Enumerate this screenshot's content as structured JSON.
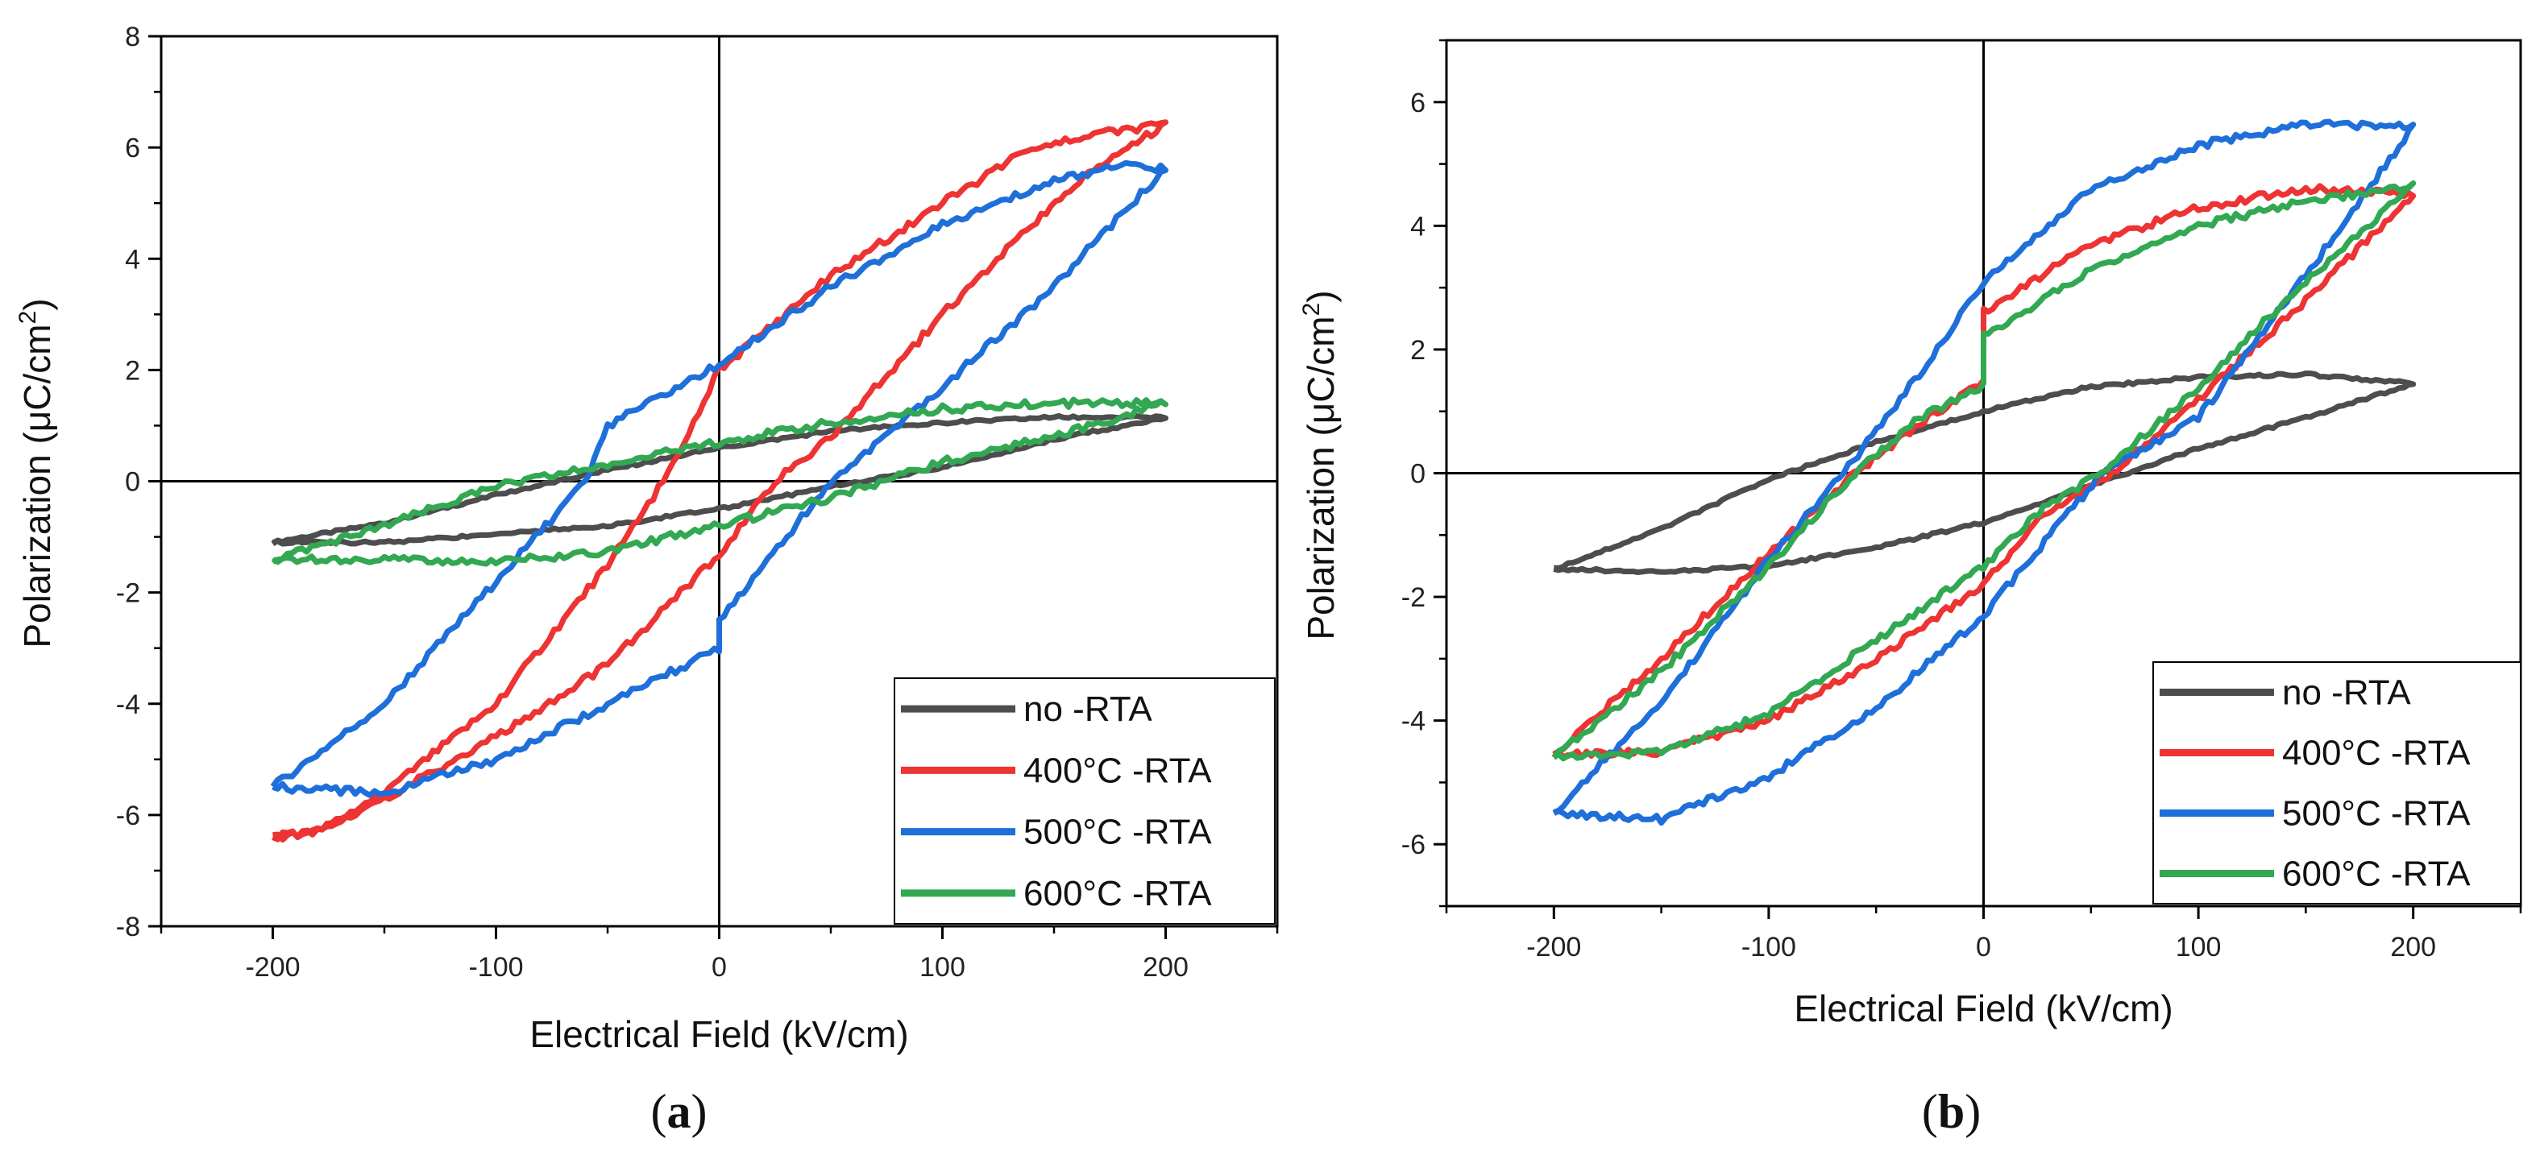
{
  "chart_data": [
    {
      "type": "line",
      "panel_label": "(a)",
      "panel_letter": "a",
      "title": "",
      "xlabel": "Electrical Field (kV/cm)",
      "ylabel_main": "Polarization (",
      "ylabel_unit": "μC/cm",
      "ylabel_sup": "2",
      "ylabel_close": ")",
      "xlim": [
        -250,
        250
      ],
      "ylim": [
        -8,
        8
      ],
      "xticks": [
        -200,
        -100,
        0,
        100,
        200
      ],
      "yticks": [
        -8,
        -6,
        -4,
        -2,
        0,
        2,
        4,
        6,
        8
      ],
      "legend_position": "bottom-right",
      "series": [
        {
          "name": "no -RTA",
          "color": "#4d4d4d",
          "upper": [
            [
              -200,
              -1.1
            ],
            [
              -150,
              -0.75
            ],
            [
              -100,
              -0.25
            ],
            [
              -50,
              0.2
            ],
            [
              0,
              0.6
            ],
            [
              50,
              0.9
            ],
            [
              100,
              1.05
            ],
            [
              150,
              1.15
            ],
            [
              200,
              1.15
            ]
          ],
          "lower": [
            [
              200,
              1.1
            ],
            [
              150,
              0.75
            ],
            [
              100,
              0.25
            ],
            [
              50,
              -0.1
            ],
            [
              0,
              -0.5
            ],
            [
              -50,
              -0.8
            ],
            [
              -100,
              -0.95
            ],
            [
              -150,
              -1.1
            ],
            [
              -200,
              -1.1
            ]
          ]
        },
        {
          "name": "400°C -RTA",
          "color": "#ee3333",
          "upper": [
            [
              -200,
              -6.4
            ],
            [
              -180,
              -6.3
            ],
            [
              -150,
              -5.6
            ],
            [
              -100,
              -4.0
            ],
            [
              -50,
              -1.5
            ],
            [
              -25,
              0.0
            ],
            [
              0,
              2.0
            ],
            [
              50,
              3.7
            ],
            [
              100,
              5.0
            ],
            [
              140,
              6.0
            ],
            [
              170,
              6.25
            ],
            [
              200,
              6.4
            ]
          ],
          "lower": [
            [
              200,
              6.4
            ],
            [
              170,
              5.7
            ],
            [
              140,
              4.6
            ],
            [
              100,
              3.0
            ],
            [
              50,
              0.8
            ],
            [
              25,
              0.0
            ],
            [
              0,
              -1.3
            ],
            [
              -50,
              -3.3
            ],
            [
              -100,
              -4.6
            ],
            [
              -150,
              -5.7
            ],
            [
              -180,
              -6.3
            ],
            [
              -200,
              -6.4
            ]
          ]
        },
        {
          "name": "500°C -RTA",
          "color": "#1e6fd9",
          "upper": [
            [
              -200,
              -5.5
            ],
            [
              -150,
              -4.0
            ],
            [
              -100,
              -1.8
            ],
            [
              -60,
              0.0
            ],
            [
              -50,
              1.0
            ],
            [
              0,
              2.1
            ],
            [
              50,
              3.5
            ],
            [
              100,
              4.6
            ],
            [
              150,
              5.4
            ],
            [
              180,
              5.7
            ],
            [
              200,
              5.6
            ]
          ],
          "lower": [
            [
              200,
              5.6
            ],
            [
              180,
              4.8
            ],
            [
              150,
              3.5
            ],
            [
              100,
              1.7
            ],
            [
              50,
              0.0
            ],
            [
              0,
              -2.5
            ],
            [
              0,
              -3.0
            ],
            [
              -50,
              -4.0
            ],
            [
              -100,
              -5.0
            ],
            [
              -150,
              -5.6
            ],
            [
              -200,
              -5.5
            ]
          ]
        },
        {
          "name": "600°C -RTA",
          "color": "#33a852",
          "upper": [
            [
              -200,
              -1.4
            ],
            [
              -150,
              -0.8
            ],
            [
              -100,
              -0.1
            ],
            [
              -50,
              0.3
            ],
            [
              0,
              0.7
            ],
            [
              50,
              1.05
            ],
            [
              100,
              1.3
            ],
            [
              150,
              1.4
            ],
            [
              200,
              1.4
            ]
          ],
          "lower": [
            [
              200,
              1.4
            ],
            [
              150,
              0.8
            ],
            [
              100,
              0.35
            ],
            [
              50,
              -0.3
            ],
            [
              0,
              -0.8
            ],
            [
              -50,
              -1.25
            ],
            [
              -100,
              -1.45
            ],
            [
              -150,
              -1.4
            ],
            [
              -200,
              -1.4
            ]
          ]
        }
      ]
    },
    {
      "type": "line",
      "panel_label": "(b)",
      "panel_letter": "b",
      "title": "",
      "xlabel": "Electrical Field (kV/cm)",
      "ylabel_main": "Polarization (",
      "ylabel_unit": "μC/cm",
      "ylabel_sup": "2",
      "ylabel_close": ")",
      "xlim": [
        -250,
        250
      ],
      "ylim": [
        -7,
        7
      ],
      "xticks": [
        -200,
        -100,
        0,
        100,
        200
      ],
      "yticks": [
        -6,
        -4,
        -2,
        0,
        2,
        4,
        6
      ],
      "legend_position": "bottom-right",
      "series": [
        {
          "name": "no -RTA",
          "color": "#4d4d4d",
          "upper": [
            [
              -200,
              -1.55
            ],
            [
              -150,
              -0.9
            ],
            [
              -100,
              -0.1
            ],
            [
              -50,
              0.5
            ],
            [
              0,
              1.0
            ],
            [
              50,
              1.4
            ],
            [
              100,
              1.55
            ],
            [
              150,
              1.6
            ],
            [
              200,
              1.45
            ]
          ],
          "lower": [
            [
              200,
              1.45
            ],
            [
              150,
              0.9
            ],
            [
              100,
              0.4
            ],
            [
              50,
              -0.2
            ],
            [
              0,
              -0.8
            ],
            [
              -50,
              -1.2
            ],
            [
              -100,
              -1.5
            ],
            [
              -150,
              -1.6
            ],
            [
              -200,
              -1.55
            ]
          ]
        },
        {
          "name": "400°C -RTA",
          "color": "#ee3333",
          "upper": [
            [
              -200,
              -4.55
            ],
            [
              -150,
              -3.0
            ],
            [
              -100,
              -1.3
            ],
            [
              -60,
              0.0
            ],
            [
              -30,
              0.8
            ],
            [
              0,
              1.5
            ],
            [
              0,
              2.6
            ],
            [
              50,
              3.7
            ],
            [
              100,
              4.3
            ],
            [
              150,
              4.6
            ],
            [
              200,
              4.5
            ]
          ],
          "lower": [
            [
              200,
              4.5
            ],
            [
              150,
              2.8
            ],
            [
              100,
              1.2
            ],
            [
              60,
              0.0
            ],
            [
              30,
              -0.6
            ],
            [
              0,
              -1.8
            ],
            [
              -50,
              -3.0
            ],
            [
              -100,
              -4.0
            ],
            [
              -150,
              -4.5
            ],
            [
              -200,
              -4.55
            ]
          ]
        },
        {
          "name": "500°C -RTA",
          "color": "#1e6fd9",
          "upper": [
            [
              -200,
              -5.5
            ],
            [
              -150,
              -3.7
            ],
            [
              -100,
              -1.4
            ],
            [
              -65,
              0.0
            ],
            [
              -30,
              1.6
            ],
            [
              0,
              3.1
            ],
            [
              50,
              4.6
            ],
            [
              100,
              5.3
            ],
            [
              150,
              5.65
            ],
            [
              200,
              5.6
            ]
          ],
          "lower": [
            [
              200,
              5.6
            ],
            [
              150,
              3.2
            ],
            [
              100,
              0.9
            ],
            [
              55,
              0.0
            ],
            [
              0,
              -2.3
            ],
            [
              -50,
              -3.8
            ],
            [
              -100,
              -4.9
            ],
            [
              -150,
              -5.6
            ],
            [
              -200,
              -5.5
            ]
          ]
        },
        {
          "name": "600°C -RTA",
          "color": "#33a852",
          "upper": [
            [
              -200,
              -4.6
            ],
            [
              -150,
              -3.2
            ],
            [
              -100,
              -1.5
            ],
            [
              -60,
              0.0
            ],
            [
              -30,
              0.9
            ],
            [
              0,
              1.4
            ],
            [
              0,
              2.2
            ],
            [
              50,
              3.3
            ],
            [
              100,
              4.0
            ],
            [
              150,
              4.4
            ],
            [
              200,
              4.65
            ]
          ],
          "lower": [
            [
              200,
              4.65
            ],
            [
              150,
              3.1
            ],
            [
              100,
              1.4
            ],
            [
              55,
              0.0
            ],
            [
              30,
              -0.5
            ],
            [
              0,
              -1.5
            ],
            [
              -50,
              -2.7
            ],
            [
              -100,
              -3.9
            ],
            [
              -150,
              -4.5
            ],
            [
              -200,
              -4.6
            ]
          ]
        }
      ]
    }
  ]
}
